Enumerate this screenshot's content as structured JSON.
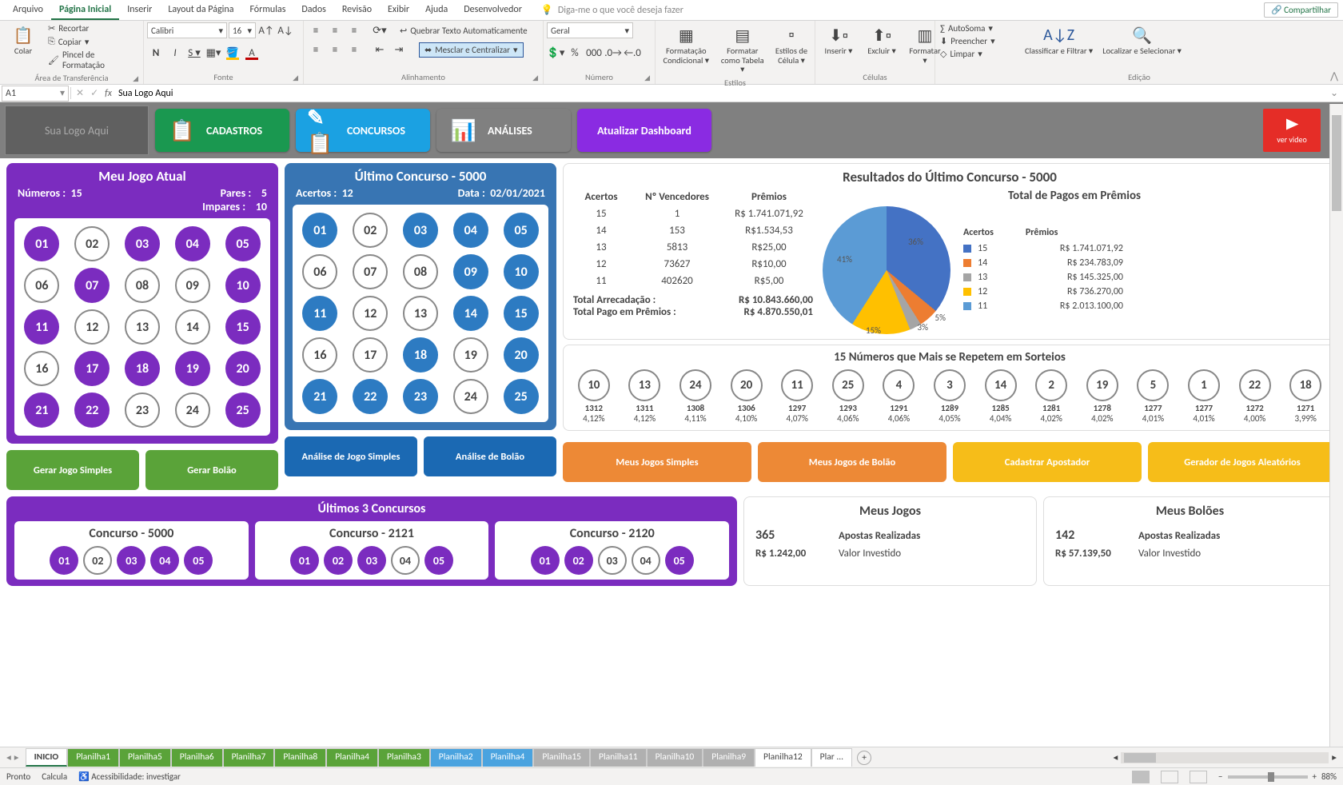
{
  "menubar": {
    "items": [
      "Arquivo",
      "Página Inicial",
      "Inserir",
      "Layout da Página",
      "Fórmulas",
      "Dados",
      "Revisão",
      "Exibir",
      "Ajuda",
      "Desenvolvedor"
    ],
    "active_index": 1,
    "tell_me": "Diga-me o que você deseja fazer",
    "share": "Compartilhar"
  },
  "ribbon": {
    "clipboard": {
      "paste": "Colar",
      "cut": "Recortar",
      "copy": "Copiar",
      "painter": "Pincel de Formatação",
      "label": "Área de Transferência"
    },
    "font": {
      "name": "Calibri",
      "size": "16",
      "label": "Fonte"
    },
    "alignment": {
      "wrap": "Quebrar Texto Automaticamente",
      "merge": "Mesclar e Centralizar",
      "label": "Alinhamento"
    },
    "number": {
      "format": "Geral",
      "label": "Número"
    },
    "styles": {
      "cond": "Formatação Condicional",
      "table": "Formatar como Tabela",
      "cell": "Estilos de Célula",
      "label": "Estilos"
    },
    "cells": {
      "insert": "Inserir",
      "delete": "Excluir",
      "format": "Formatar",
      "label": "Células"
    },
    "editing": {
      "sum": "AutoSoma",
      "fill": "Preencher",
      "clear": "Limpar",
      "sort": "Classificar e Filtrar",
      "find": "Localizar e Selecionar",
      "label": "Edição"
    }
  },
  "formula_bar": {
    "cell": "A1",
    "value": "Sua Logo Aqui"
  },
  "nav": {
    "logo": "Sua Logo Aqui",
    "btn1": "CADASTROS",
    "btn2": "CONCURSOS",
    "btn3": "ANÁLISES",
    "btn4": "Atualizar Dashboard",
    "yt": "ver video"
  },
  "meujogo": {
    "title": "Meu Jogo Atual",
    "numeros_lbl": "Números :",
    "numeros": "15",
    "pares_lbl": "Pares :",
    "pares": "5",
    "impares_lbl": "Impares :",
    "impares": "10",
    "balls": [
      {
        "n": "01",
        "on": true
      },
      {
        "n": "02",
        "on": false
      },
      {
        "n": "03",
        "on": true
      },
      {
        "n": "04",
        "on": true
      },
      {
        "n": "05",
        "on": true
      },
      {
        "n": "06",
        "on": false
      },
      {
        "n": "07",
        "on": true
      },
      {
        "n": "08",
        "on": false
      },
      {
        "n": "09",
        "on": false
      },
      {
        "n": "10",
        "on": true
      },
      {
        "n": "11",
        "on": true
      },
      {
        "n": "12",
        "on": false
      },
      {
        "n": "13",
        "on": false
      },
      {
        "n": "14",
        "on": false
      },
      {
        "n": "15",
        "on": true
      },
      {
        "n": "16",
        "on": false
      },
      {
        "n": "17",
        "on": true
      },
      {
        "n": "18",
        "on": true
      },
      {
        "n": "19",
        "on": true
      },
      {
        "n": "20",
        "on": true
      },
      {
        "n": "21",
        "on": true
      },
      {
        "n": "22",
        "on": true
      },
      {
        "n": "23",
        "on": false
      },
      {
        "n": "24",
        "on": false
      },
      {
        "n": "25",
        "on": true
      }
    ],
    "btn_simples": "Gerar Jogo Simples",
    "btn_bolao": "Gerar Bolão"
  },
  "ultimo": {
    "title": "Último Concurso - 5000",
    "acertos_lbl": "Acertos :",
    "acertos": "12",
    "data_lbl": "Data :",
    "data": "02/01/2021",
    "balls": [
      {
        "n": "01",
        "on": true
      },
      {
        "n": "02",
        "on": false
      },
      {
        "n": "03",
        "on": true
      },
      {
        "n": "04",
        "on": true
      },
      {
        "n": "05",
        "on": true
      },
      {
        "n": "06",
        "on": false
      },
      {
        "n": "07",
        "on": false
      },
      {
        "n": "08",
        "on": false
      },
      {
        "n": "09",
        "on": true
      },
      {
        "n": "10",
        "on": true
      },
      {
        "n": "11",
        "on": true
      },
      {
        "n": "12",
        "on": false
      },
      {
        "n": "13",
        "on": false
      },
      {
        "n": "14",
        "on": true
      },
      {
        "n": "15",
        "on": true
      },
      {
        "n": "16",
        "on": false
      },
      {
        "n": "17",
        "on": false
      },
      {
        "n": "18",
        "on": true
      },
      {
        "n": "19",
        "on": false
      },
      {
        "n": "20",
        "on": true
      },
      {
        "n": "21",
        "on": true
      },
      {
        "n": "22",
        "on": true
      },
      {
        "n": "23",
        "on": true
      },
      {
        "n": "24",
        "on": false
      },
      {
        "n": "25",
        "on": true
      }
    ],
    "btn_simples": "Análise de Jogo Simples",
    "btn_bolao": "Análise de Bolão"
  },
  "resultados": {
    "title": "Resultados do Último Concurso - 5000",
    "cols": [
      "Acertos",
      "Nº Vencedores",
      "Prêmios"
    ],
    "rows": [
      [
        "15",
        "1",
        "R$ 1.741.071,92"
      ],
      [
        "14",
        "153",
        "R$1.534,53"
      ],
      [
        "13",
        "5813",
        "R$25,00"
      ],
      [
        "12",
        "73627",
        "R$10,00"
      ],
      [
        "11",
        "402620",
        "R$5,00"
      ]
    ],
    "tot1_lbl": "Total Arrecadação :",
    "tot1": "R$ 10.843.660,00",
    "tot2_lbl": "Total Pago em Prêmios :",
    "tot2": "R$ 4.870.550,01",
    "chart_title": "Total de Pagos em Prêmios",
    "legend_h": [
      "Acertos",
      "Prêmios"
    ],
    "pie_colors": {
      "c15": "#4472c4",
      "c14": "#ed7d31",
      "c13": "#a5a5a5",
      "c12": "#ffc000",
      "c11": "#5b9bd5"
    },
    "pie_labels": {
      "l41": "41%",
      "l36": "36%",
      "l15": "15%",
      "l5": "5%",
      "l3": "3%"
    },
    "legend": [
      {
        "k": "15",
        "v": "R$ 1.741.071,92",
        "c": "#4472c4"
      },
      {
        "k": "14",
        "v": "R$ 234.783,09",
        "c": "#ed7d31"
      },
      {
        "k": "13",
        "v": "R$ 145.325,00",
        "c": "#a5a5a5"
      },
      {
        "k": "12",
        "v": "R$ 736.270,00",
        "c": "#ffc000"
      },
      {
        "k": "11",
        "v": "R$ 2.013.100,00",
        "c": "#5b9bd5"
      }
    ],
    "btn_msimples": "Meus Jogos Simples",
    "btn_mbolao": "Meus Jogos de Bolão",
    "btn_cad": "Cadastrar Apostador",
    "btn_ger": "Gerador de Jogos Aleatórios"
  },
  "freq": {
    "title": "15 Números que Mais se Repetem em Sorteios",
    "items": [
      {
        "n": "10",
        "c": "1312",
        "p": "4,12%"
      },
      {
        "n": "13",
        "c": "1311",
        "p": "4,12%"
      },
      {
        "n": "24",
        "c": "1308",
        "p": "4,11%"
      },
      {
        "n": "20",
        "c": "1306",
        "p": "4,10%"
      },
      {
        "n": "11",
        "c": "1297",
        "p": "4,07%"
      },
      {
        "n": "25",
        "c": "1293",
        "p": "4,06%"
      },
      {
        "n": "4",
        "c": "1291",
        "p": "4,06%"
      },
      {
        "n": "3",
        "c": "1289",
        "p": "4,05%"
      },
      {
        "n": "14",
        "c": "1285",
        "p": "4,04%"
      },
      {
        "n": "2",
        "c": "1281",
        "p": "4,02%"
      },
      {
        "n": "19",
        "c": "1278",
        "p": "4,02%"
      },
      {
        "n": "5",
        "c": "1277",
        "p": "4,01%"
      },
      {
        "n": "1",
        "c": "1277",
        "p": "4,01%"
      },
      {
        "n": "22",
        "c": "1272",
        "p": "4,00%"
      },
      {
        "n": "18",
        "c": "1271",
        "p": "3,99%"
      }
    ]
  },
  "ult3": {
    "title": "Últimos 3  Concursos",
    "cols": [
      {
        "t": "Concurso - 5000",
        "balls": [
          {
            "n": "01",
            "on": true
          },
          {
            "n": "02",
            "on": false
          },
          {
            "n": "03",
            "on": true
          },
          {
            "n": "04",
            "on": true
          },
          {
            "n": "05",
            "on": true
          }
        ]
      },
      {
        "t": "Concurso - 2121",
        "balls": [
          {
            "n": "01",
            "on": true
          },
          {
            "n": "02",
            "on": true
          },
          {
            "n": "03",
            "on": true
          },
          {
            "n": "04",
            "on": false
          },
          {
            "n": "05",
            "on": true
          }
        ]
      },
      {
        "t": "Concurso - 2120",
        "balls": [
          {
            "n": "01",
            "on": true
          },
          {
            "n": "02",
            "on": true
          },
          {
            "n": "03",
            "on": false
          },
          {
            "n": "04",
            "on": false
          },
          {
            "n": "05",
            "on": true
          }
        ]
      }
    ]
  },
  "meusjogos": {
    "title": "Meus Jogos",
    "n": "365",
    "lbl": "Apostas Realizadas",
    "val": "R$ 1.242,00",
    "vlbl": "Valor Investido"
  },
  "meusboloes": {
    "title": "Meus Bolões",
    "n": "142",
    "lbl": "Apostas Realizadas",
    "val": "R$ 57.139,50",
    "vlbl": "Valor Investido"
  },
  "tabs": {
    "items": [
      {
        "name": "INICIO",
        "cls": "active"
      },
      {
        "name": "Planilha1",
        "cls": "green"
      },
      {
        "name": "Planilha5",
        "cls": "green"
      },
      {
        "name": "Planilha6",
        "cls": "green"
      },
      {
        "name": "Planilha7",
        "cls": "green"
      },
      {
        "name": "Planilha8",
        "cls": "green"
      },
      {
        "name": "Planilha4",
        "cls": "green"
      },
      {
        "name": "Planilha3",
        "cls": "green"
      },
      {
        "name": "Planilha2",
        "cls": "blue"
      },
      {
        "name": "Planilha4",
        "cls": "blue"
      },
      {
        "name": "Planilha15",
        "cls": "gray"
      },
      {
        "name": "Planilha11",
        "cls": "gray"
      },
      {
        "name": "Planilha10",
        "cls": "gray"
      },
      {
        "name": "Planilha9",
        "cls": "gray"
      },
      {
        "name": "Planilha12",
        "cls": ""
      },
      {
        "name": "Plar  ...",
        "cls": ""
      }
    ]
  },
  "status": {
    "ready": "Pronto",
    "calc": "Calcula",
    "acc": "Acessibilidade: investigar",
    "zoom": "88%"
  }
}
